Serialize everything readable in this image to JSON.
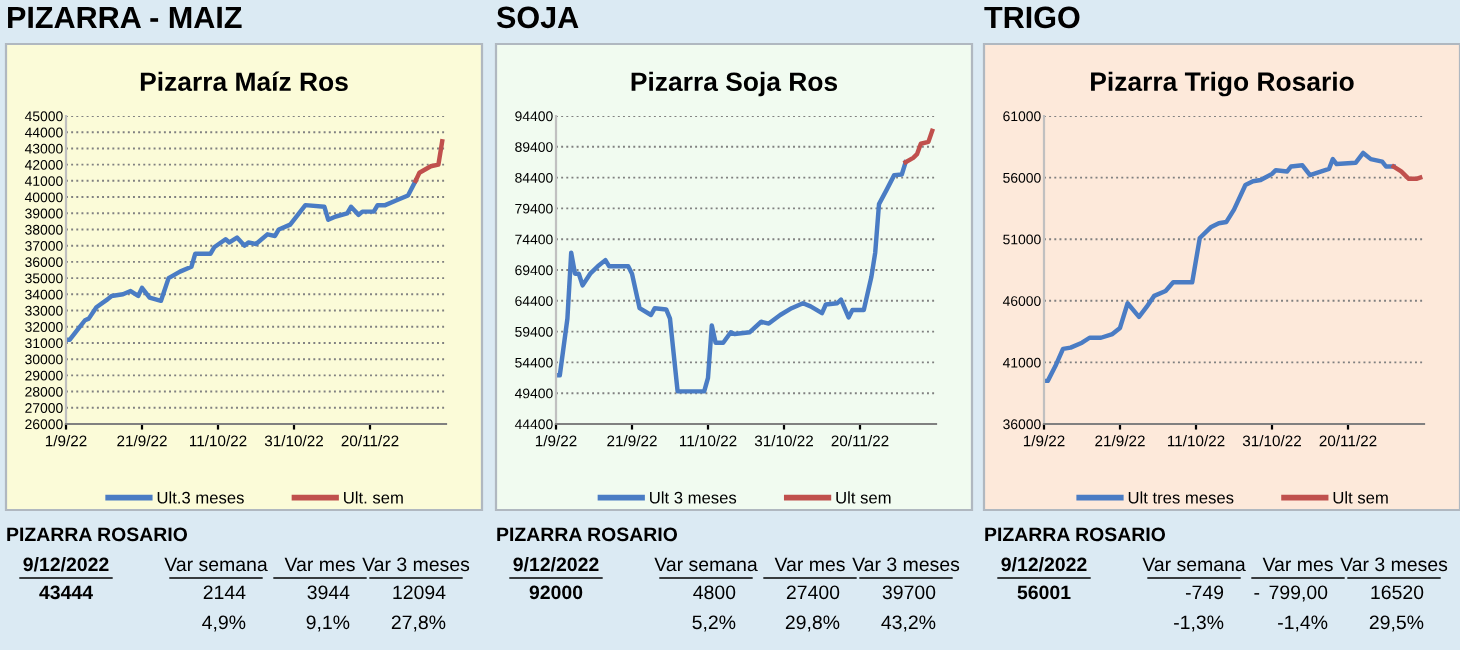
{
  "chart_data": [
    {
      "type": "line",
      "title": "PIZARRA - MAIZ",
      "subtitle": "Pizarra Maíz Ros",
      "legend": "bottom",
      "grid": "y",
      "marker": "none",
      "line_style": "solid",
      "xlim": [
        "2022-09-01",
        "2022-12-10"
      ],
      "xticks": [
        {
          "value": "2022-09-01",
          "label": "1/9/22"
        },
        {
          "value": "2022-09-21",
          "label": "21/9/22"
        },
        {
          "value": "2022-10-11",
          "label": "11/10/22"
        },
        {
          "value": "2022-10-31",
          "label": "31/10/22"
        },
        {
          "value": "2022-11-20",
          "label": "20/11/22"
        }
      ],
      "ylim": [
        26000,
        45000
      ],
      "yticks": [
        26000,
        27000,
        28000,
        29000,
        30000,
        31000,
        32000,
        33000,
        34000,
        35000,
        36000,
        37000,
        38000,
        39000,
        40000,
        41000,
        42000,
        43000,
        44000,
        45000
      ],
      "series": [
        {
          "name": "Ult.3 meses",
          "color": "#4a7cc4",
          "x": [
            "2022-09-01",
            "2022-09-02",
            "2022-09-04",
            "2022-09-06",
            "2022-09-07",
            "2022-09-09",
            "2022-09-12",
            "2022-09-13",
            "2022-09-16",
            "2022-09-18",
            "2022-09-20",
            "2022-09-21",
            "2022-09-23",
            "2022-09-26",
            "2022-09-28",
            "2022-10-01",
            "2022-10-04",
            "2022-10-05",
            "2022-10-09",
            "2022-10-10",
            "2022-10-13",
            "2022-10-14",
            "2022-10-16",
            "2022-10-18",
            "2022-10-19",
            "2022-10-21",
            "2022-10-24",
            "2022-10-26",
            "2022-10-27",
            "2022-10-30",
            "2022-11-01",
            "2022-11-03",
            "2022-11-08",
            "2022-11-09",
            "2022-11-11",
            "2022-11-14",
            "2022-11-15",
            "2022-11-17",
            "2022-11-18",
            "2022-11-21",
            "2022-11-22",
            "2022-11-24",
            "2022-11-27",
            "2022-11-30",
            "2022-12-02"
          ],
          "values": [
            31200,
            31200,
            31800,
            32400,
            32500,
            33200,
            33700,
            33900,
            34000,
            34200,
            33900,
            34400,
            33800,
            33600,
            35000,
            35400,
            35700,
            36500,
            36500,
            36900,
            37400,
            37200,
            37500,
            37000,
            37200,
            37100,
            37700,
            37600,
            38000,
            38300,
            38900,
            39500,
            39400,
            38600,
            38800,
            39000,
            39400,
            38900,
            39100,
            39100,
            39500,
            39500,
            39800,
            40100,
            41000
          ]
        },
        {
          "name": "Ult. sem",
          "color": "#c0504d",
          "x": [
            "2022-12-02",
            "2022-12-03",
            "2022-12-06",
            "2022-12-08",
            "2022-12-09"
          ],
          "values": [
            41000,
            41500,
            41900,
            42000,
            43444
          ]
        }
      ],
      "annotations": [
        "PIZARRA ROSARIO",
        "9/12/2022",
        "Var semana",
        "Var mes",
        "Var 3 meses",
        "43444",
        "2144",
        "3944",
        "12094",
        "4,9%",
        "9,1%",
        "27,8%"
      ]
    },
    {
      "type": "line",
      "title": "SOJA",
      "subtitle": "Pizarra Soja Ros",
      "legend": "bottom",
      "grid": "y",
      "marker": "none",
      "line_style": "solid",
      "xlim": [
        "2022-09-01",
        "2022-12-10"
      ],
      "xticks": [
        {
          "value": "2022-09-01",
          "label": "1/9/22"
        },
        {
          "value": "2022-09-21",
          "label": "21/9/22"
        },
        {
          "value": "2022-10-11",
          "label": "11/10/22"
        },
        {
          "value": "2022-10-31",
          "label": "31/10/22"
        },
        {
          "value": "2022-11-20",
          "label": "20/11/22"
        }
      ],
      "ylim": [
        44400,
        94400
      ],
      "yticks": [
        44400,
        49400,
        54400,
        59400,
        64400,
        69400,
        74400,
        79400,
        84400,
        89400,
        94400
      ],
      "series": [
        {
          "name": "Ult 3 meses",
          "color": "#4a7cc4",
          "x": [
            "2022-09-01",
            "2022-09-02",
            "2022-09-04",
            "2022-09-05",
            "2022-09-06",
            "2022-09-07",
            "2022-09-08",
            "2022-09-10",
            "2022-09-12",
            "2022-09-14",
            "2022-09-15",
            "2022-09-20",
            "2022-09-21",
            "2022-09-23",
            "2022-09-26",
            "2022-09-27",
            "2022-09-30",
            "2022-10-01",
            "2022-10-03",
            "2022-10-10",
            "2022-10-11",
            "2022-10-12",
            "2022-10-13",
            "2022-10-15",
            "2022-10-17",
            "2022-10-18",
            "2022-10-22",
            "2022-10-25",
            "2022-10-27",
            "2022-10-30",
            "2022-11-02",
            "2022-11-05",
            "2022-11-07",
            "2022-11-10",
            "2022-11-11",
            "2022-11-14",
            "2022-11-15",
            "2022-11-17",
            "2022-11-18",
            "2022-11-21",
            "2022-11-23",
            "2022-11-24",
            "2022-11-25",
            "2022-11-27",
            "2022-11-29",
            "2022-12-01",
            "2022-12-02"
          ],
          "values": [
            52300,
            52300,
            61500,
            72200,
            68800,
            68800,
            66900,
            68800,
            70000,
            71000,
            70000,
            70000,
            68800,
            63200,
            62100,
            63200,
            63000,
            61500,
            49700,
            49700,
            51900,
            60400,
            57600,
            57600,
            59300,
            59000,
            59300,
            61000,
            60700,
            62100,
            63200,
            64000,
            63500,
            62400,
            63800,
            64000,
            64600,
            61700,
            62900,
            62900,
            68300,
            72200,
            80100,
            82400,
            84800,
            84900,
            86900
          ]
        },
        {
          "name": "Ult sem",
          "color": "#c0504d",
          "x": [
            "2022-12-02",
            "2022-12-04",
            "2022-12-05",
            "2022-12-06",
            "2022-12-08",
            "2022-12-09"
          ],
          "values": [
            86900,
            87600,
            88200,
            89900,
            90200,
            92000
          ]
        }
      ],
      "annotations": [
        "PIZARRA ROSARIO",
        "9/12/2022",
        "Var semana",
        "Var mes",
        "Var 3 meses",
        "92000",
        "4800",
        "27400",
        "39700",
        "5,2%",
        "29,8%",
        "43,2%"
      ]
    },
    {
      "type": "line",
      "title": "TRIGO",
      "subtitle": "Pizarra Trigo Rosario",
      "legend": "bottom",
      "grid": "y",
      "marker": "none",
      "line_style": "solid",
      "xlim": [
        "2022-09-01",
        "2022-12-10"
      ],
      "xticks": [
        {
          "value": "2022-09-01",
          "label": "1/9/22"
        },
        {
          "value": "2022-09-21",
          "label": "21/9/22"
        },
        {
          "value": "2022-10-11",
          "label": "11/10/22"
        },
        {
          "value": "2022-10-31",
          "label": "31/10/22"
        },
        {
          "value": "2022-11-20",
          "label": "20/11/22"
        }
      ],
      "ylim": [
        36000,
        61000
      ],
      "yticks": [
        36000,
        41000,
        46000,
        51000,
        56000,
        61000
      ],
      "series": [
        {
          "name": "Ult tres meses",
          "color": "#4a7cc4",
          "x": [
            "2022-09-01",
            "2022-09-02",
            "2022-09-04",
            "2022-09-06",
            "2022-09-08",
            "2022-09-11",
            "2022-09-13",
            "2022-09-16",
            "2022-09-19",
            "2022-09-21",
            "2022-09-23",
            "2022-09-26",
            "2022-09-28",
            "2022-09-30",
            "2022-10-03",
            "2022-10-05",
            "2022-10-10",
            "2022-10-12",
            "2022-10-15",
            "2022-10-17",
            "2022-10-19",
            "2022-10-21",
            "2022-10-24",
            "2022-10-26",
            "2022-10-28",
            "2022-10-31",
            "2022-11-01",
            "2022-11-04",
            "2022-11-05",
            "2022-11-08",
            "2022-11-10",
            "2022-11-13",
            "2022-11-15",
            "2022-11-16",
            "2022-11-17",
            "2022-11-22",
            "2022-11-24",
            "2022-11-26",
            "2022-11-29",
            "2022-11-30",
            "2022-12-02"
          ],
          "values": [
            39500,
            39500,
            40700,
            42100,
            42200,
            42600,
            43000,
            43000,
            43300,
            43800,
            45800,
            44700,
            45500,
            46400,
            46800,
            47500,
            47500,
            51100,
            52000,
            52300,
            52400,
            53400,
            55400,
            55700,
            55800,
            56300,
            56600,
            56500,
            56900,
            57000,
            56200,
            56500,
            56700,
            57500,
            57100,
            57200,
            58000,
            57500,
            57300,
            56900,
            56900
          ]
        },
        {
          "name": "Ult sem",
          "color": "#c0504d",
          "x": [
            "2022-12-02",
            "2022-12-04",
            "2022-12-06",
            "2022-12-08",
            "2022-12-09"
          ],
          "values": [
            56900,
            56500,
            55900,
            55900,
            56001
          ]
        }
      ],
      "annotations": [
        "PIZARRA ROSARIO",
        "9/12/2022",
        "Var semana",
        "Var mes",
        "Var 3 meses",
        "56001",
        "-749",
        "-",
        "799,00",
        "16520",
        "-1,3%",
        "-1,4%",
        "29,5%"
      ]
    }
  ]
}
